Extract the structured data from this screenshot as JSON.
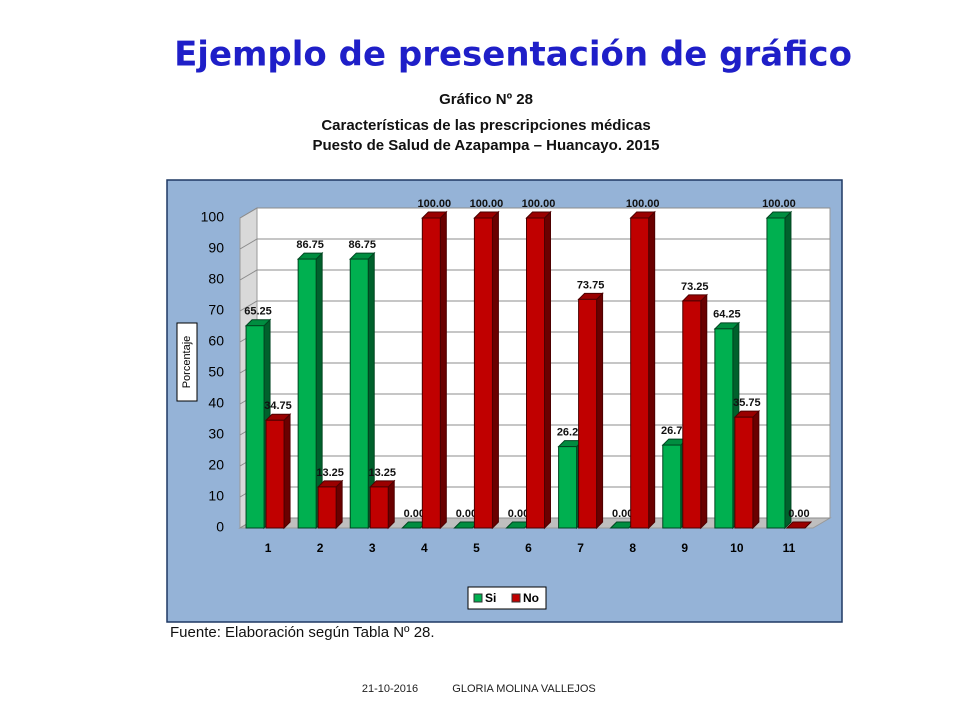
{
  "slide_title": "Ejemplo de presentación de gráfico",
  "source": "Fuente: Elaboración según Tabla Nº 28.",
  "footer": {
    "date": "21-10-2016",
    "author": "GLORIA MOLINA VALLEJOS"
  },
  "chart_data": {
    "type": "bar",
    "title": "Gráfico Nº 28",
    "subtitle": [
      "Características de las prescripciones médicas",
      "Puesto de Salud de Azapampa – Huancayo. 2015"
    ],
    "y_label": "Porcentaje",
    "categories": [
      "1",
      "2",
      "3",
      "4",
      "5",
      "6",
      "7",
      "8",
      "9",
      "10",
      "11"
    ],
    "series": [
      {
        "name": "Si",
        "color": "#00b050",
        "values": [
          65.25,
          86.75,
          86.75,
          0,
          0,
          0,
          26.25,
          0,
          26.75,
          64.25,
          100
        ],
        "value_labels": [
          "65.25",
          "86.75",
          "86.75",
          "0.00",
          "0.00",
          "0.00",
          "26.25",
          "0.00",
          "26.75",
          "64.25",
          "100.00"
        ]
      },
      {
        "name": "No",
        "color": "#c00000",
        "values": [
          34.75,
          13.25,
          13.25,
          100,
          100,
          100,
          73.75,
          100,
          73.25,
          35.75,
          0
        ],
        "value_labels": [
          "34.75",
          "13.25",
          "13.25",
          "100.00",
          "100.00",
          "100.00",
          "73.75",
          "100.00",
          "73.25",
          "35.75",
          "0.00"
        ]
      }
    ],
    "ylim": [
      0,
      100
    ],
    "yticks": [
      0,
      10,
      20,
      30,
      40,
      50,
      60,
      70,
      80,
      90,
      100
    ],
    "grid": true,
    "legend": "bottom"
  }
}
